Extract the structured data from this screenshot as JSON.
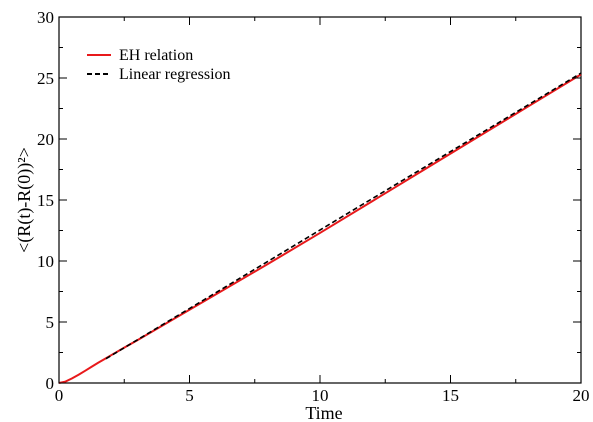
{
  "chart_data": {
    "type": "line",
    "title": "",
    "xlabel": "Time",
    "ylabel": "<(R(t)-R(0))²>",
    "xlim": [
      0,
      20
    ],
    "ylim": [
      0,
      30
    ],
    "xticks": [
      0,
      5,
      10,
      15,
      20
    ],
    "yticks": [
      0,
      5,
      10,
      15,
      20,
      25,
      30
    ],
    "xtick_labels": [
      "0",
      "5",
      "10",
      "15",
      "20"
    ],
    "ytick_labels": [
      "0",
      "5",
      "10",
      "15",
      "20",
      "25",
      "30"
    ],
    "grid": false,
    "legend_position": "top-left",
    "series": [
      {
        "name": "EH relation",
        "color": "#e8191b",
        "style": "solid",
        "x": [
          0,
          0.25,
          0.5,
          0.75,
          1.0,
          1.25,
          1.5,
          1.75,
          2.0,
          2.5,
          3,
          4,
          5,
          6,
          8,
          10,
          12,
          14,
          16,
          18,
          20
        ],
        "y": [
          0,
          0.12,
          0.38,
          0.68,
          1.0,
          1.33,
          1.66,
          1.97,
          2.28,
          2.9,
          3.5,
          4.75,
          6.0,
          7.25,
          9.75,
          12.3,
          14.9,
          17.5,
          20.1,
          22.7,
          25.3
        ]
      },
      {
        "name": "Linear regression",
        "color": "#000000",
        "style": "dashed",
        "x": [
          1.8,
          20
        ],
        "y": [
          1.99,
          25.4
        ]
      }
    ]
  }
}
